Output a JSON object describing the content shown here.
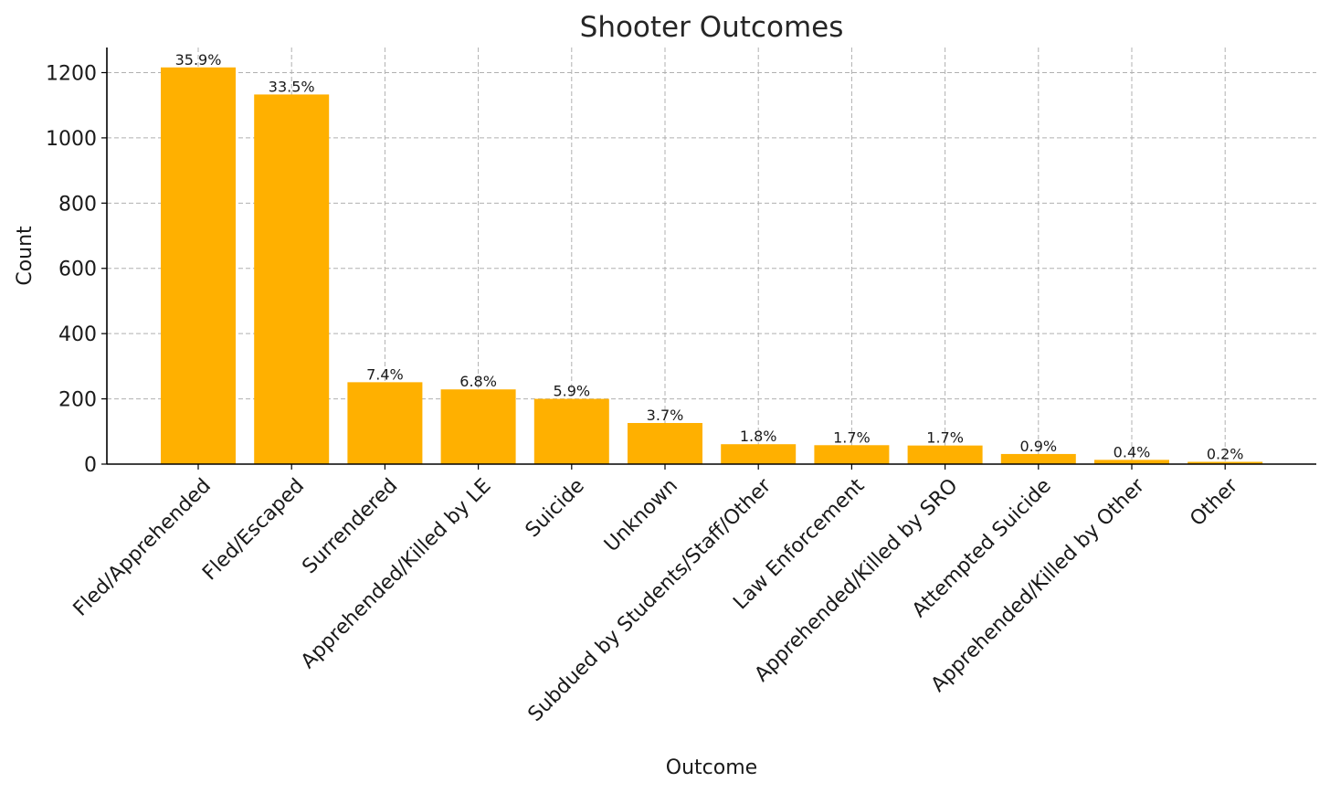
{
  "chart_data": {
    "type": "bar",
    "title": "Shooter Outcomes",
    "xlabel": "Outcome",
    "ylabel": "Count",
    "categories": [
      "Fled/Apprehended",
      "Fled/Escaped",
      "Surrendered",
      "Apprehended/Killed by LE",
      "Suicide",
      "Unknown",
      "Subdued by Students/Staff/Other",
      "Law Enforcement",
      "Apprehended/Killed by SRO",
      "Attempted Suicide",
      "Apprehended/Killed by Other",
      "Other"
    ],
    "values": [
      1216,
      1133,
      251,
      229,
      200,
      126,
      61,
      58,
      57,
      31,
      13,
      7
    ],
    "data_labels": [
      "35.9%",
      "33.5%",
      "7.4%",
      "6.8%",
      "5.9%",
      "3.7%",
      "1.8%",
      "1.7%",
      "1.7%",
      "0.9%",
      "0.4%",
      "0.2%"
    ],
    "yticks": [
      0,
      200,
      400,
      600,
      800,
      1000,
      1200
    ],
    "ylim": [
      0,
      1277
    ],
    "grid": true,
    "bar_color": "#FFB000"
  }
}
